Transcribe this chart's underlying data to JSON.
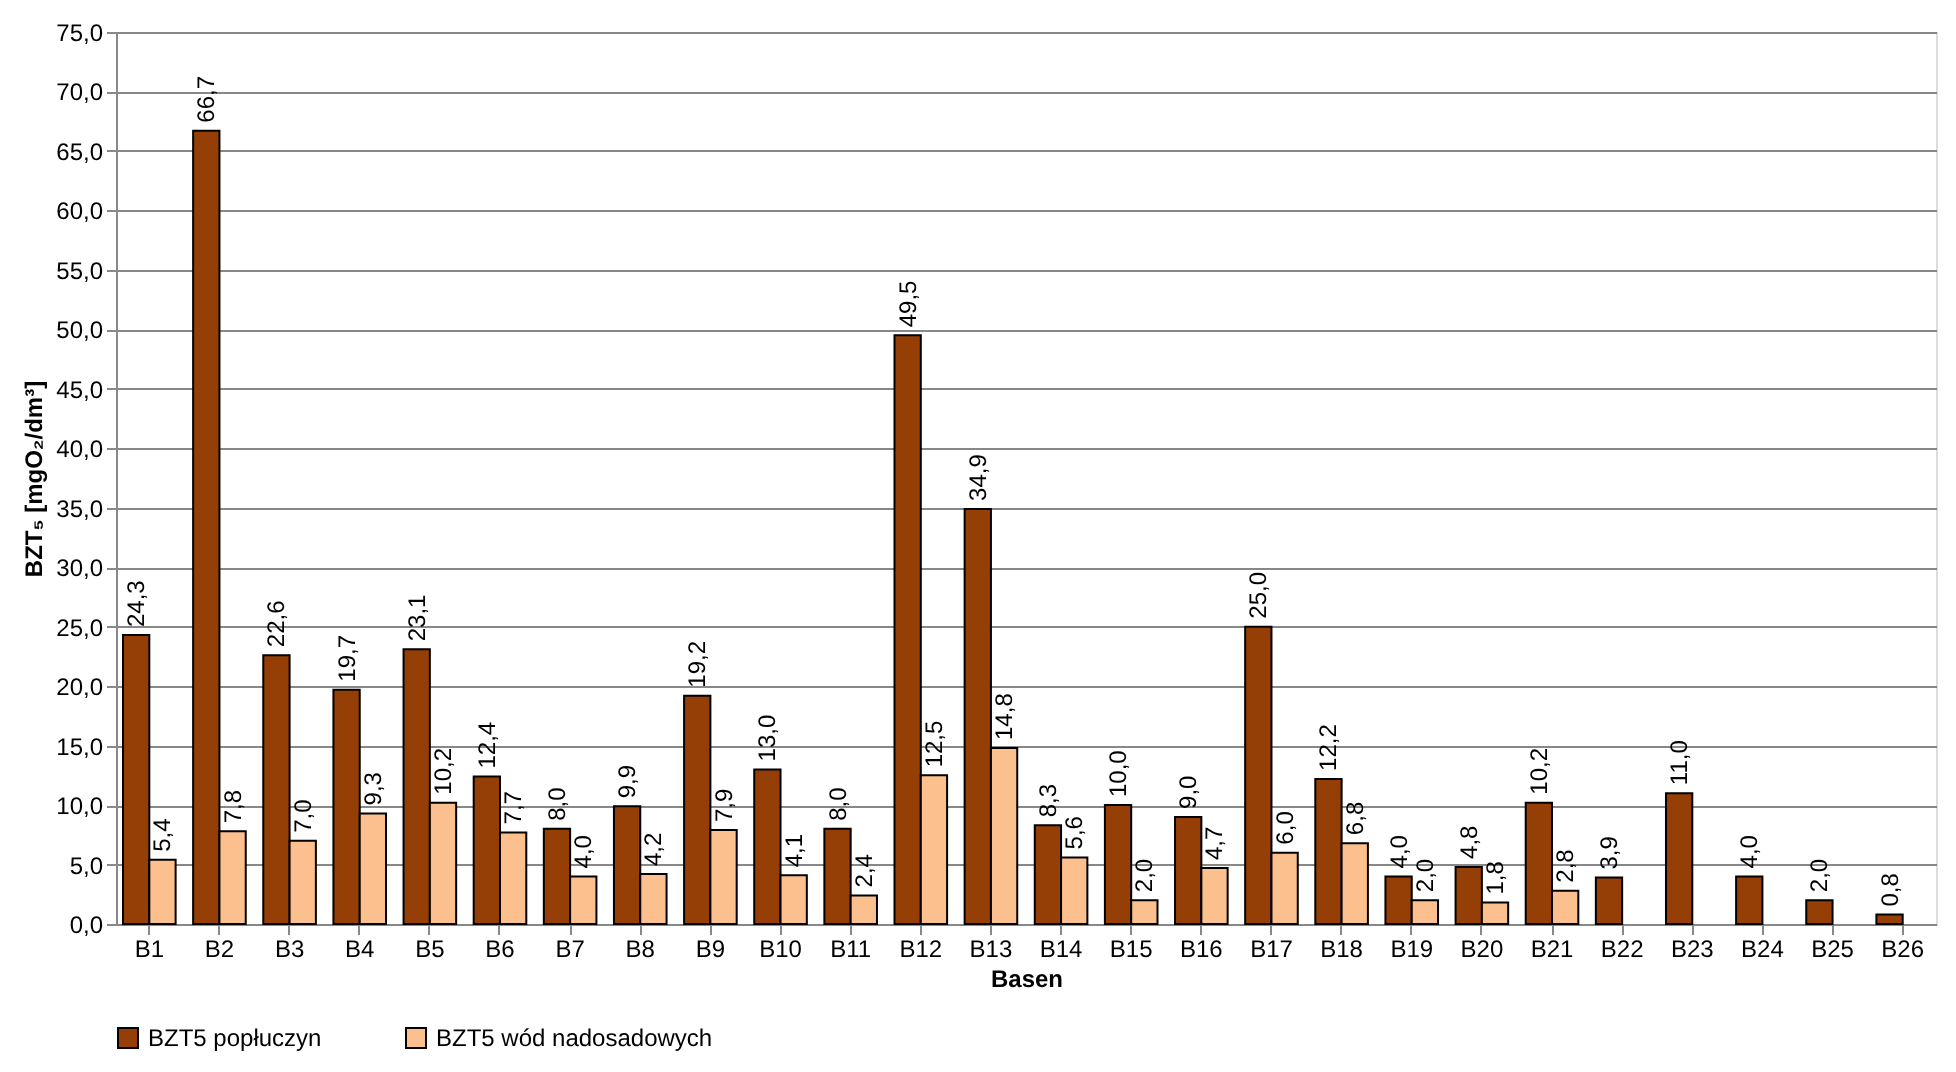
{
  "chart_data": {
    "type": "bar",
    "xlabel": "Basen",
    "ylabel": "BZT₅ [mgO₂/dm³]",
    "categories": [
      "B1",
      "B2",
      "B3",
      "B4",
      "B5",
      "B6",
      "B7",
      "B8",
      "B9",
      "B10",
      "B11",
      "B12",
      "B13",
      "B14",
      "B15",
      "B16",
      "B17",
      "B18",
      "B19",
      "B20",
      "B21",
      "B22",
      "B23",
      "B24",
      "B25",
      "B26"
    ],
    "series": [
      {
        "name": "BZT5 popłuczyn",
        "color": "#953f06",
        "values": [
          24.3,
          66.7,
          22.6,
          19.7,
          23.1,
          12.4,
          8.0,
          9.9,
          19.2,
          13.0,
          8.0,
          49.5,
          34.9,
          8.3,
          10.0,
          9.0,
          25.0,
          12.2,
          4.0,
          4.8,
          10.2,
          3.9,
          11.0,
          4.0,
          2.0,
          0.8
        ],
        "value_labels": [
          "24,3",
          "66,7",
          "22,6",
          "19,7",
          "23,1",
          "12,4",
          "8,0",
          "9,9",
          "19,2",
          "13,0",
          "8,0",
          "49,5",
          "34,9",
          "8,3",
          "10,0",
          "9,0",
          "25,0",
          "12,2",
          "4,0",
          "4,8",
          "10,2",
          "3,9",
          "11,0",
          "4,0",
          "2,0",
          "0,8"
        ]
      },
      {
        "name": "BZT5 wód nadosadowych",
        "color": "#fbc08e",
        "values": [
          5.4,
          7.8,
          7.0,
          9.3,
          10.2,
          7.7,
          4.0,
          4.2,
          7.9,
          4.1,
          2.4,
          12.5,
          14.8,
          5.6,
          2.0,
          4.7,
          6.0,
          6.8,
          2.0,
          1.8,
          2.8,
          null,
          null,
          null,
          null,
          null
        ],
        "value_labels": [
          "5,4",
          "7,8",
          "7,0",
          "9,3",
          "10,2",
          "7,7",
          "4,0",
          "4,2",
          "7,9",
          "4,1",
          "2,4",
          "12,5",
          "14,8",
          "5,6",
          "2,0",
          "4,7",
          "6,0",
          "6,8",
          "2,0",
          "1,8",
          "2,8",
          null,
          null,
          null,
          null,
          null
        ]
      }
    ],
    "ylim": [
      0,
      75
    ],
    "yticks": [
      {
        "value": 0,
        "label": "0,0"
      },
      {
        "value": 5,
        "label": "5,0"
      },
      {
        "value": 10,
        "label": "10,0"
      },
      {
        "value": 15,
        "label": "15,0"
      },
      {
        "value": 20,
        "label": "20,0"
      },
      {
        "value": 25,
        "label": "25,0"
      },
      {
        "value": 30,
        "label": "30,0"
      },
      {
        "value": 35,
        "label": "35,0"
      },
      {
        "value": 40,
        "label": "40,0"
      },
      {
        "value": 45,
        "label": "45,0"
      },
      {
        "value": 50,
        "label": "50,0"
      },
      {
        "value": 55,
        "label": "55,0"
      },
      {
        "value": 60,
        "label": "60,0"
      },
      {
        "value": 65,
        "label": "65,0"
      },
      {
        "value": 70,
        "label": "70,0"
      },
      {
        "value": 75,
        "label": "75,0"
      }
    ],
    "grid": "y",
    "legend": "bottom"
  }
}
